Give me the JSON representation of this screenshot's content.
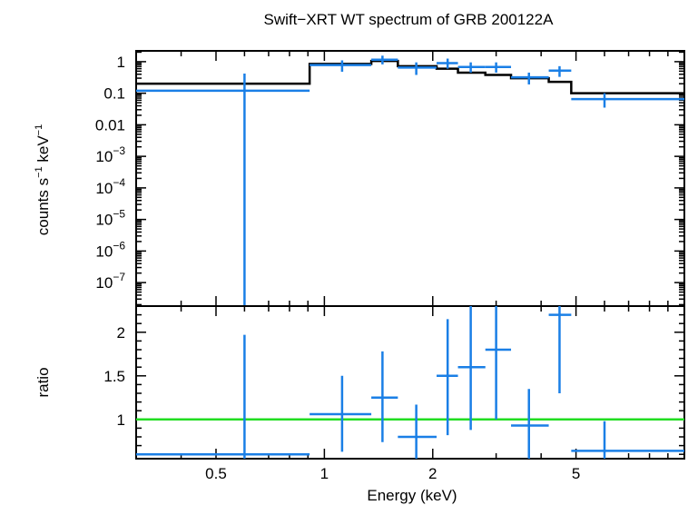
{
  "chart_data": [
    {
      "type": "line",
      "panel": "spectrum",
      "title": "Swift−XRT WT spectrum of GRB 200122A",
      "ylabel_base": "counts s",
      "ylabel_mid": " keV",
      "ylabel_exp": "−1",
      "xscale": "log",
      "yscale": "log",
      "xlim": [
        0.3,
        10
      ],
      "ylim": [
        1.8e-08,
        2.2
      ],
      "yticks": [
        {
          "value": 1,
          "mant": "1",
          "exp": ""
        },
        {
          "value": 0.1,
          "mant": "0.1",
          "exp": ""
        },
        {
          "value": 0.01,
          "mant": "0.01",
          "exp": ""
        },
        {
          "value": 0.001,
          "mant": "10",
          "exp": "−3"
        },
        {
          "value": 0.0001,
          "mant": "10",
          "exp": "−4"
        },
        {
          "value": 1e-05,
          "mant": "10",
          "exp": "−5"
        },
        {
          "value": 1e-06,
          "mant": "10",
          "exp": "−6"
        },
        {
          "value": 1e-07,
          "mant": "10",
          "exp": "−7"
        }
      ],
      "series": [
        {
          "kind": "data",
          "color": "#1a7fe6",
          "points": [
            {
              "x": 0.6,
              "xlo": 0.3,
              "xhi": 0.91,
              "y": 0.12,
              "ylo": 1e-09,
              "yhi": 0.42
            },
            {
              "x": 1.12,
              "xlo": 0.91,
              "xhi": 1.35,
              "y": 0.78,
              "ylo": 0.48,
              "yhi": 1.1
            },
            {
              "x": 1.45,
              "xlo": 1.35,
              "xhi": 1.6,
              "y": 1.15,
              "ylo": 0.82,
              "yhi": 1.55
            },
            {
              "x": 1.8,
              "xlo": 1.6,
              "xhi": 2.05,
              "y": 0.65,
              "ylo": 0.38,
              "yhi": 0.95
            },
            {
              "x": 2.2,
              "xlo": 2.05,
              "xhi": 2.35,
              "y": 0.9,
              "ylo": 0.6,
              "yhi": 1.25
            },
            {
              "x": 2.55,
              "xlo": 2.35,
              "xhi": 2.8,
              "y": 0.68,
              "ylo": 0.45,
              "yhi": 0.95
            },
            {
              "x": 3.0,
              "xlo": 2.8,
              "xhi": 3.3,
              "y": 0.68,
              "ylo": 0.45,
              "yhi": 0.95
            },
            {
              "x": 3.7,
              "xlo": 3.3,
              "xhi": 4.2,
              "y": 0.32,
              "ylo": 0.19,
              "yhi": 0.45
            },
            {
              "x": 4.5,
              "xlo": 4.2,
              "xhi": 4.85,
              "y": 0.52,
              "ylo": 0.33,
              "yhi": 0.72
            },
            {
              "x": 6.0,
              "xlo": 4.85,
              "xhi": 10,
              "y": 0.065,
              "ylo": 0.035,
              "yhi": 0.1
            }
          ]
        },
        {
          "kind": "model",
          "color": "#000000",
          "steps": [
            {
              "x0": 0.3,
              "x1": 0.91,
              "y": 0.2
            },
            {
              "x0": 0.91,
              "x1": 1.35,
              "y": 0.85
            },
            {
              "x0": 1.35,
              "x1": 1.6,
              "y": 1.05
            },
            {
              "x0": 1.6,
              "x1": 2.05,
              "y": 0.72
            },
            {
              "x0": 2.05,
              "x1": 2.35,
              "y": 0.6
            },
            {
              "x0": 2.35,
              "x1": 2.8,
              "y": 0.45
            },
            {
              "x0": 2.8,
              "x1": 3.3,
              "y": 0.38
            },
            {
              "x0": 3.3,
              "x1": 4.2,
              "y": 0.3
            },
            {
              "x0": 4.2,
              "x1": 4.85,
              "y": 0.23
            },
            {
              "x0": 4.85,
              "x1": 10,
              "y": 0.1
            }
          ]
        }
      ]
    },
    {
      "type": "scatter",
      "panel": "ratio",
      "xlabel": "Energy (keV)",
      "ylabel": "ratio",
      "xscale": "log",
      "xlim": [
        0.3,
        10
      ],
      "ylim": [
        0.55,
        2.3
      ],
      "xticks": [
        {
          "value": 0.5,
          "label": "0.5"
        },
        {
          "value": 1,
          "label": "1"
        },
        {
          "value": 2,
          "label": "2"
        },
        {
          "value": 5,
          "label": "5"
        }
      ],
      "yticks": [
        {
          "value": 1,
          "label": "1"
        },
        {
          "value": 1.5,
          "label": "1.5"
        },
        {
          "value": 2,
          "label": "2"
        }
      ],
      "reference_line": {
        "y": 1,
        "color": "#22dd22"
      },
      "series": [
        {
          "kind": "data",
          "color": "#1a7fe6",
          "points": [
            {
              "x": 0.6,
              "xlo": 0.3,
              "xhi": 0.91,
              "y": 0.6,
              "ylo": 0.55,
              "yhi": 1.97
            },
            {
              "x": 1.12,
              "xlo": 0.91,
              "xhi": 1.35,
              "y": 1.06,
              "ylo": 0.63,
              "yhi": 1.5
            },
            {
              "x": 1.45,
              "xlo": 1.35,
              "xhi": 1.6,
              "y": 1.25,
              "ylo": 0.74,
              "yhi": 1.78
            },
            {
              "x": 1.8,
              "xlo": 1.6,
              "xhi": 2.05,
              "y": 0.8,
              "ylo": 0.55,
              "yhi": 1.17
            },
            {
              "x": 2.2,
              "xlo": 2.05,
              "xhi": 2.35,
              "y": 1.5,
              "ylo": 0.82,
              "yhi": 2.15
            },
            {
              "x": 2.55,
              "xlo": 2.35,
              "xhi": 2.8,
              "y": 1.6,
              "ylo": 0.88,
              "yhi": 2.3
            },
            {
              "x": 3.0,
              "xlo": 2.8,
              "xhi": 3.3,
              "y": 1.8,
              "ylo": 1.0,
              "yhi": 2.3
            },
            {
              "x": 3.7,
              "xlo": 3.3,
              "xhi": 4.2,
              "y": 0.93,
              "ylo": 0.55,
              "yhi": 1.35
            },
            {
              "x": 4.5,
              "xlo": 4.2,
              "xhi": 4.85,
              "y": 2.2,
              "ylo": 1.3,
              "yhi": 2.3
            },
            {
              "x": 6.0,
              "xlo": 4.85,
              "xhi": 10,
              "y": 0.64,
              "ylo": 0.55,
              "yhi": 0.98
            }
          ]
        }
      ]
    }
  ]
}
